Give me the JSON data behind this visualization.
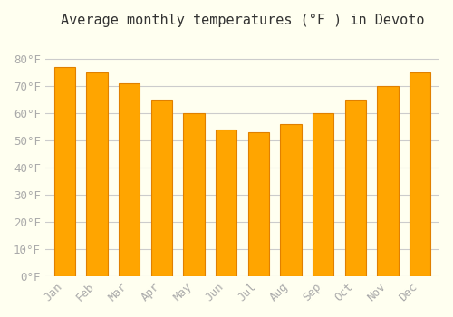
{
  "months": [
    "Jan",
    "Feb",
    "Mar",
    "Apr",
    "May",
    "Jun",
    "Jul",
    "Aug",
    "Sep",
    "Oct",
    "Nov",
    "Dec"
  ],
  "values": [
    77,
    75,
    71,
    65,
    60,
    54,
    53,
    56,
    60,
    65,
    70,
    75
  ],
  "bar_color": "#FFA500",
  "bar_edge_color": "#E08000",
  "title": "Average monthly temperatures (°F ) in Devoto",
  "ylim": [
    0,
    88
  ],
  "yticks": [
    0,
    10,
    20,
    30,
    40,
    50,
    60,
    70,
    80
  ],
  "ytick_labels": [
    "0°F",
    "10°F",
    "20°F",
    "30°F",
    "40°F",
    "50°F",
    "60°F",
    "70°F",
    "80°F"
  ],
  "background_color": "#FFFFF0",
  "grid_color": "#CCCCCC",
  "title_fontsize": 11,
  "tick_fontsize": 9,
  "tick_color": "#AAAAAA",
  "bar_width": 0.65
}
